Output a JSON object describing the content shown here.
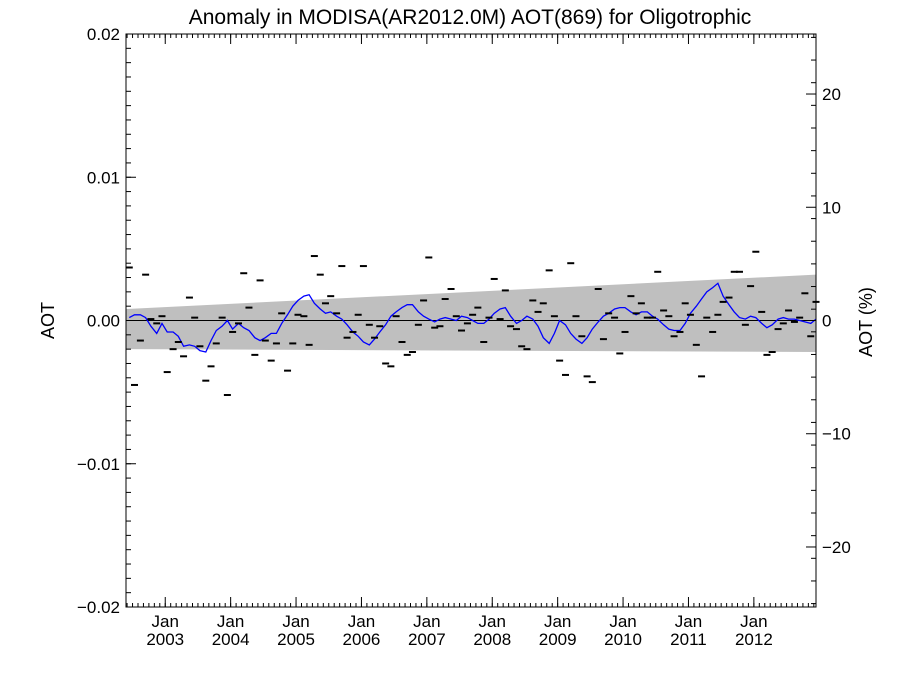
{
  "chart_data": {
    "type": "line",
    "title": "Anomaly in MODISA(AR2012.0M) AOT(869) for Oligotrophic",
    "ylabel": "AOT",
    "y2label": "AOT (%)",
    "xlabel": "",
    "xlim": [
      2002.4,
      2012.95
    ],
    "ylim": [
      -0.02,
      0.02
    ],
    "y2lim": [
      -25.3,
      25.3
    ],
    "x_ticks": [
      {
        "month": "Jan",
        "year": "2003",
        "x": 2003.0
      },
      {
        "month": "Jan",
        "year": "2004",
        "x": 2004.0
      },
      {
        "month": "Jan",
        "year": "2005",
        "x": 2005.0
      },
      {
        "month": "Jan",
        "year": "2006",
        "x": 2006.0
      },
      {
        "month": "Jan",
        "year": "2007",
        "x": 2007.0
      },
      {
        "month": "Jan",
        "year": "2008",
        "x": 2008.0
      },
      {
        "month": "Jan",
        "year": "2009",
        "x": 2009.0
      },
      {
        "month": "Jan",
        "year": "2010",
        "x": 2010.0
      },
      {
        "month": "Jan",
        "year": "2011",
        "x": 2011.0
      },
      {
        "month": "Jan",
        "year": "2012",
        "x": 2012.0
      }
    ],
    "y_ticks": [
      {
        "value": 0.02,
        "label": "0.02"
      },
      {
        "value": 0.01,
        "label": "0.01"
      },
      {
        "value": 0.0,
        "label": "0.00"
      },
      {
        "value": -0.01,
        "label": "−0.01"
      },
      {
        "value": -0.02,
        "label": "−0.02"
      }
    ],
    "y2_ticks": [
      {
        "value": 20,
        "label": "20"
      },
      {
        "value": 10,
        "label": "10"
      },
      {
        "value": 0,
        "label": "0"
      },
      {
        "value": -10,
        "label": "−10"
      },
      {
        "value": -20,
        "label": "−20"
      }
    ],
    "band": {
      "color": "#bfbfbf",
      "x": [
        2002.4,
        2012.95
      ],
      "upper": [
        0.0008,
        0.0032
      ],
      "lower": [
        -0.002,
        -0.0022
      ]
    },
    "zero_line": 0.0,
    "series": [
      {
        "style": "markers",
        "color": "#000000",
        "x": [
          2002.45,
          2002.53,
          2002.62,
          2002.7,
          2002.78,
          2002.87,
          2002.95,
          2003.03,
          2003.12,
          2003.2,
          2003.28,
          2003.37,
          2003.45,
          2003.53,
          2003.62,
          2003.7,
          2003.78,
          2003.87,
          2003.95,
          2004.03,
          2004.12,
          2004.2,
          2004.28,
          2004.37,
          2004.45,
          2004.53,
          2004.62,
          2004.7,
          2004.78,
          2004.87,
          2004.95,
          2005.03,
          2005.12,
          2005.2,
          2005.28,
          2005.37,
          2005.45,
          2005.53,
          2005.62,
          2005.7,
          2005.78,
          2005.87,
          2005.95,
          2006.03,
          2006.12,
          2006.2,
          2006.28,
          2006.37,
          2006.45,
          2006.53,
          2006.62,
          2006.7,
          2006.78,
          2006.87,
          2006.95,
          2007.03,
          2007.12,
          2007.2,
          2007.28,
          2007.37,
          2007.45,
          2007.53,
          2007.62,
          2007.7,
          2007.78,
          2007.87,
          2007.95,
          2008.03,
          2008.12,
          2008.2,
          2008.28,
          2008.37,
          2008.45,
          2008.53,
          2008.62,
          2008.7,
          2008.78,
          2008.87,
          2008.95,
          2009.03,
          2009.12,
          2009.2,
          2009.28,
          2009.37,
          2009.45,
          2009.53,
          2009.62,
          2009.7,
          2009.78,
          2009.87,
          2009.95,
          2010.03,
          2010.12,
          2010.2,
          2010.28,
          2010.37,
          2010.45,
          2010.53,
          2010.62,
          2010.7,
          2010.78,
          2010.87,
          2010.95,
          2011.03,
          2011.12,
          2011.2,
          2011.28,
          2011.37,
          2011.45,
          2011.53,
          2011.62,
          2011.7,
          2011.78,
          2011.87,
          2011.95,
          2012.03,
          2012.12,
          2012.2,
          2012.28,
          2012.37,
          2012.45,
          2012.53,
          2012.62,
          2012.7,
          2012.78,
          2012.87,
          2012.95
        ],
        "y": [
          0.0037,
          -0.0045,
          -0.0014,
          0.0032,
          0.0001,
          -0.0002,
          0.0003,
          -0.0036,
          -0.002,
          -0.0015,
          -0.0025,
          0.0016,
          0.0002,
          -0.0018,
          -0.0042,
          -0.0032,
          -0.0016,
          0.0002,
          -0.0052,
          -0.0008,
          -0.0002,
          0.0033,
          0.0009,
          -0.0024,
          0.0028,
          -0.0014,
          -0.0028,
          -0.0016,
          0.0005,
          -0.0035,
          -0.0016,
          0.0004,
          0.0003,
          -0.0017,
          0.0045,
          0.0032,
          0.0012,
          0.0017,
          0.0005,
          0.0038,
          -0.0012,
          -0.0008,
          0.0004,
          0.0038,
          -0.0003,
          -0.0012,
          -0.0004,
          -0.003,
          -0.0032,
          0.0003,
          -0.0015,
          -0.0024,
          -0.0022,
          -0.0003,
          0.0014,
          0.0044,
          -0.0005,
          -0.0004,
          0.0015,
          0.0022,
          0.0003,
          -0.0007,
          -0.0002,
          0.0004,
          0.0009,
          -0.0015,
          0.0002,
          0.0029,
          0.0001,
          0.0021,
          -0.0004,
          -0.0006,
          -0.0018,
          -0.002,
          0.0014,
          0.0006,
          0.0012,
          0.0035,
          0.0003,
          -0.0028,
          -0.0038,
          0.004,
          0.0003,
          -0.0011,
          -0.0039,
          -0.0043,
          0.0022,
          -0.0013,
          0.0005,
          0.0002,
          -0.0023,
          -0.0008,
          0.0017,
          0.0005,
          0.0012,
          0.0002,
          0.0002,
          0.0034,
          0.0007,
          0.0003,
          -0.0011,
          -0.0008,
          0.0012,
          0.0004,
          -0.0017,
          -0.0039,
          0.0002,
          -0.0008,
          0.0004,
          0.0013,
          0.0016,
          0.0034,
          0.0034,
          -0.0003,
          0.0024,
          0.0048,
          0.0006,
          -0.0024,
          -0.0022,
          -0.0006,
          -0.0002,
          0.0007,
          -0.0001,
          0.0002,
          0.0019,
          -0.0011,
          0.0013
        ]
      },
      {
        "style": "line",
        "color": "#0000ff",
        "x": [
          2002.45,
          2002.53,
          2002.62,
          2002.7,
          2002.78,
          2002.87,
          2002.95,
          2003.03,
          2003.12,
          2003.2,
          2003.28,
          2003.37,
          2003.45,
          2003.53,
          2003.62,
          2003.7,
          2003.78,
          2003.87,
          2003.95,
          2004.03,
          2004.12,
          2004.2,
          2004.28,
          2004.37,
          2004.45,
          2004.53,
          2004.62,
          2004.7,
          2004.78,
          2004.87,
          2004.95,
          2005.03,
          2005.12,
          2005.2,
          2005.28,
          2005.37,
          2005.45,
          2005.53,
          2005.62,
          2005.7,
          2005.78,
          2005.87,
          2005.95,
          2006.03,
          2006.12,
          2006.2,
          2006.28,
          2006.37,
          2006.45,
          2006.53,
          2006.62,
          2006.7,
          2006.78,
          2006.87,
          2006.95,
          2007.03,
          2007.12,
          2007.2,
          2007.28,
          2007.37,
          2007.45,
          2007.53,
          2007.62,
          2007.7,
          2007.78,
          2007.87,
          2007.95,
          2008.03,
          2008.12,
          2008.2,
          2008.28,
          2008.37,
          2008.45,
          2008.53,
          2008.62,
          2008.7,
          2008.78,
          2008.87,
          2008.95,
          2009.03,
          2009.12,
          2009.2,
          2009.28,
          2009.37,
          2009.45,
          2009.53,
          2009.62,
          2009.7,
          2009.78,
          2009.87,
          2009.95,
          2010.03,
          2010.12,
          2010.2,
          2010.28,
          2010.37,
          2010.45,
          2010.53,
          2010.62,
          2010.7,
          2010.78,
          2010.87,
          2010.95,
          2011.03,
          2011.12,
          2011.2,
          2011.28,
          2011.37,
          2011.45,
          2011.53,
          2011.62,
          2011.7,
          2011.78,
          2011.87,
          2011.95,
          2012.03,
          2012.12,
          2012.2,
          2012.28,
          2012.37,
          2012.45,
          2012.53,
          2012.62,
          2012.7,
          2012.78,
          2012.87,
          2012.95
        ],
        "y": [
          0.0002,
          0.0004,
          0.0004,
          0.0002,
          -0.0004,
          -0.0009,
          -0.0002,
          -0.0008,
          -0.0008,
          -0.0011,
          -0.0018,
          -0.0017,
          -0.0018,
          -0.0021,
          -0.0022,
          -0.0014,
          -0.0007,
          -0.0004,
          0.0,
          -0.0006,
          -0.0002,
          -0.0005,
          -0.0007,
          -0.0012,
          -0.0014,
          -0.0012,
          -0.0009,
          -0.0009,
          -0.0002,
          0.0004,
          0.001,
          0.0014,
          0.0017,
          0.0018,
          0.0012,
          0.0008,
          0.0005,
          0.0006,
          0.0003,
          0.0001,
          -0.0003,
          -0.0008,
          -0.0011,
          -0.0015,
          -0.0017,
          -0.0013,
          -0.0008,
          -0.0003,
          0.0003,
          0.0006,
          0.0009,
          0.0011,
          0.0011,
          0.0006,
          0.0003,
          0.0001,
          -0.0001,
          0.0001,
          0.0002,
          0.0001,
          0.0,
          0.0003,
          0.0002,
          0.0,
          -0.0002,
          -0.0002,
          0.0001,
          0.0005,
          0.0008,
          0.0009,
          0.0003,
          -0.0002,
          0.0,
          0.0003,
          0.0001,
          -0.0004,
          -0.0012,
          -0.0016,
          -0.0009,
          0.0,
          -0.0003,
          -0.0009,
          -0.0013,
          -0.0016,
          -0.0012,
          -0.0006,
          -0.0001,
          0.0003,
          0.0005,
          0.0008,
          0.0009,
          0.0009,
          0.0006,
          0.0004,
          0.0006,
          0.0006,
          0.0003,
          0.0001,
          -0.0003,
          -0.0006,
          -0.0007,
          -0.0007,
          -0.0002,
          0.0005,
          0.001,
          0.0015,
          0.002,
          0.0023,
          0.0026,
          0.0017,
          0.0011,
          0.0006,
          0.0002,
          0.0001,
          0.0003,
          0.0002,
          -0.0002,
          -0.0005,
          -0.0003,
          0.0001,
          0.0002,
          0.0001,
          0.0001,
          0.0,
          -0.0001,
          -0.0002,
          0.0001
        ]
      }
    ]
  }
}
